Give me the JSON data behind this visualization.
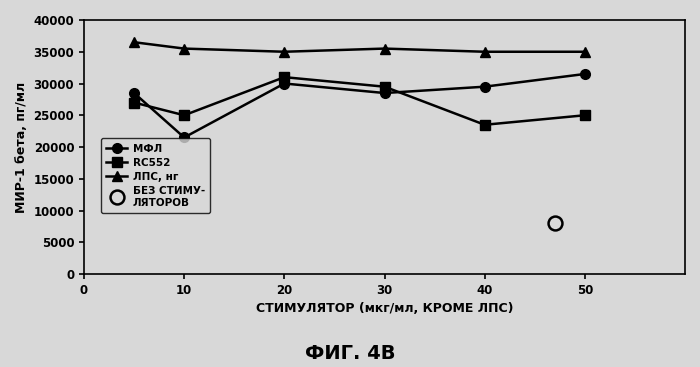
{
  "x": [
    5,
    10,
    20,
    30,
    40,
    50
  ],
  "mfl": [
    28500,
    21500,
    30000,
    28500,
    29500,
    31500
  ],
  "rc552": [
    27000,
    25000,
    31000,
    29500,
    23500,
    25000
  ],
  "lps": [
    36500,
    35500,
    35000,
    35500,
    35000,
    35000
  ],
  "no_stim_x": 47,
  "no_stim_y": 8000,
  "xlabel": "СТИМУЛЯТОР (мкг/мл, КРОМЕ ЛПС)",
  "ylabel": "МИР-1 бета, пг/мл",
  "xlim": [
    0,
    60
  ],
  "ylim": [
    0,
    40000
  ],
  "yticks": [
    0,
    5000,
    10000,
    15000,
    20000,
    25000,
    30000,
    35000,
    40000
  ],
  "xticks": [
    0,
    10,
    20,
    30,
    40,
    50
  ],
  "legend_labels": [
    "МФЛ",
    "RC552",
    "ЛПС, нг",
    "БЕЗ СТИМУ-\nЛЯТОРОВ"
  ],
  "title_below": "ФИГ. 4В",
  "line_color": "#000000",
  "background_color": "#d8d8d8"
}
